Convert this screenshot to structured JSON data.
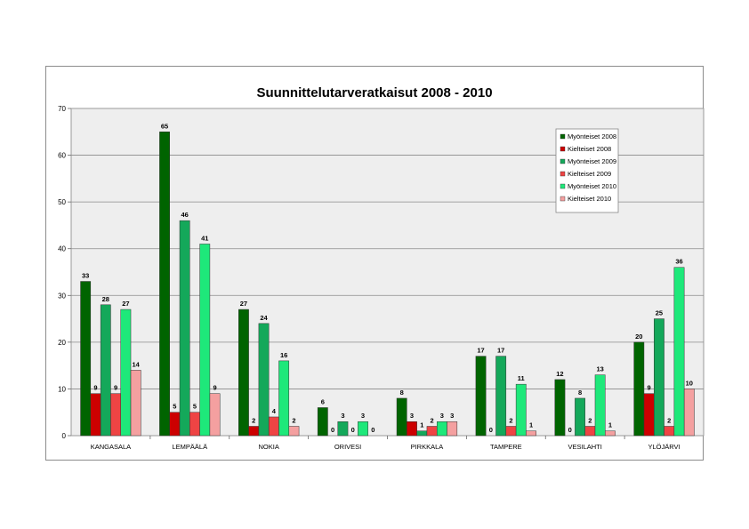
{
  "chart_data": {
    "type": "bar",
    "title": "Suunnittelutarveratkaisut 2008 - 2010",
    "xlabel": "",
    "ylabel": "",
    "ylim": [
      0,
      70
    ],
    "yticks": [
      0,
      10,
      20,
      30,
      40,
      50,
      60,
      70
    ],
    "grid": true,
    "legend_position": "top-right",
    "categories": [
      "KANGASALA",
      "LEMPÄÄLÄ",
      "NOKIA",
      "ORIVESI",
      "PIRKKALA",
      "TAMPERE",
      "VESILAHTI",
      "YLÖJÄRVI"
    ],
    "series": [
      {
        "name": "Myönteiset 2008",
        "color": "#006400",
        "values": [
          33,
          65,
          27,
          6,
          8,
          17,
          12,
          20
        ]
      },
      {
        "name": "Kielteiset 2008",
        "color": "#cc0000",
        "values": [
          9,
          5,
          2,
          0,
          3,
          0,
          0,
          9
        ]
      },
      {
        "name": "Myönteiset 2009",
        "color": "#14a85a",
        "values": [
          28,
          46,
          24,
          3,
          1,
          17,
          8,
          25
        ]
      },
      {
        "name": "Kielteiset 2009",
        "color": "#ee4444",
        "values": [
          9,
          5,
          4,
          0,
          2,
          2,
          2,
          2
        ]
      },
      {
        "name": "Myönteiset 2010",
        "color": "#1ee87a",
        "values": [
          27,
          41,
          16,
          3,
          3,
          11,
          13,
          36
        ]
      },
      {
        "name": "Kielteiset 2010",
        "color": "#f4a0a0",
        "values": [
          14,
          9,
          2,
          0,
          3,
          1,
          1,
          10
        ]
      }
    ],
    "plot_background": "#eeeeee"
  }
}
